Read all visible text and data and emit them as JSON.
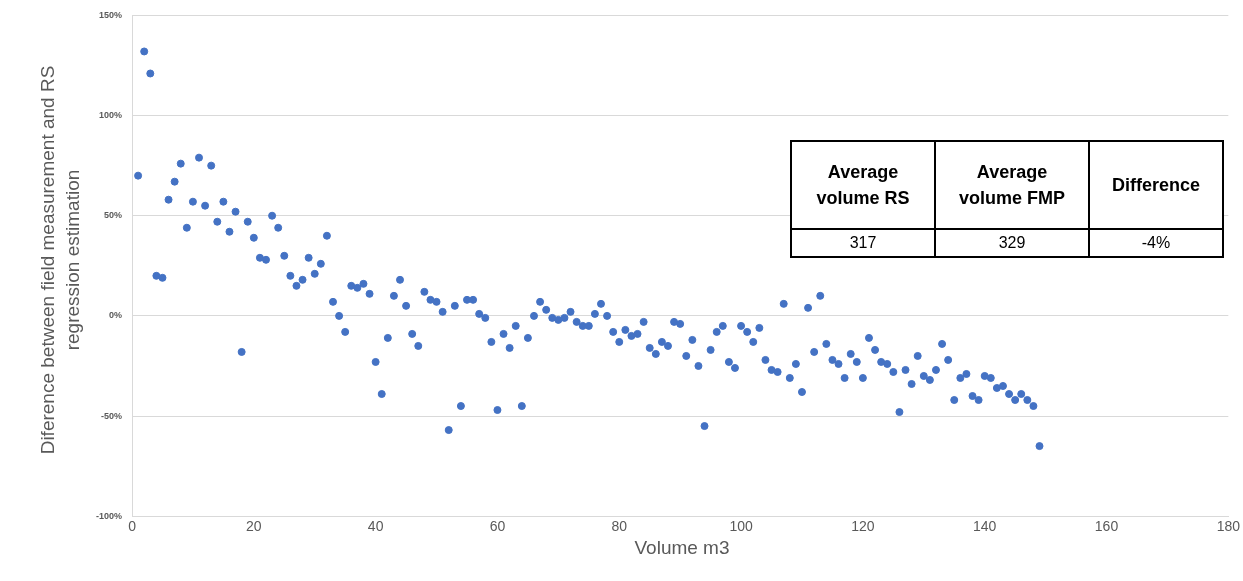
{
  "chart_data": {
    "type": "scatter",
    "xlabel": "Volume m3",
    "ylabel": "Diference between field measurement and RS regression estimation",
    "x": [
      1,
      2,
      3,
      4,
      5,
      6,
      7,
      8,
      9,
      10,
      11,
      12,
      13,
      14,
      15,
      16,
      17,
      18,
      19,
      20,
      21,
      22,
      23,
      24,
      25,
      26,
      27,
      28,
      29,
      30,
      31,
      32,
      33,
      34,
      35,
      36,
      37,
      38,
      39,
      40,
      41,
      42,
      43,
      44,
      45,
      46,
      47,
      48,
      49,
      50,
      51,
      52,
      53,
      54,
      55,
      56,
      57,
      58,
      59,
      60,
      61,
      62,
      63,
      64,
      65,
      66,
      67,
      68,
      69,
      70,
      71,
      72,
      73,
      74,
      75,
      76,
      77,
      78,
      79,
      80,
      81,
      82,
      83,
      84,
      85,
      86,
      87,
      88,
      89,
      90,
      91,
      92,
      93,
      94,
      95,
      96,
      97,
      98,
      99,
      100,
      101,
      102,
      103,
      104,
      105,
      106,
      107,
      108,
      109,
      110,
      111,
      112,
      113,
      114,
      115,
      116,
      117,
      118,
      119,
      120,
      121,
      122,
      123,
      124,
      125,
      126,
      127,
      128,
      129,
      130,
      131,
      132,
      133,
      134,
      135,
      136,
      137,
      138,
      139,
      140,
      141,
      142,
      143,
      144,
      145,
      146,
      147,
      148,
      149
    ],
    "series": [
      {
        "color": "#4472c4",
        "values": [
          70,
          132,
          121,
          20,
          19,
          58,
          67,
          76,
          44,
          57,
          79,
          55,
          75,
          47,
          57,
          42,
          52,
          -18,
          47,
          39,
          29,
          28,
          50,
          44,
          30,
          20,
          15,
          18,
          29,
          21,
          26,
          40,
          7,
          0,
          -8,
          15,
          14,
          16,
          11,
          -23,
          -39,
          -11,
          10,
          18,
          5,
          -9,
          -15,
          12,
          8,
          7,
          2,
          -57,
          5,
          -45,
          8,
          8,
          1,
          -1,
          -13,
          -47,
          -9,
          -16,
          -5,
          -45,
          -11,
          0,
          7,
          3,
          -1,
          -2,
          -1,
          2,
          -3,
          -5,
          -5,
          1,
          6,
          0,
          -8,
          -13,
          -7,
          -10,
          -9,
          -3,
          -16,
          -19,
          -13,
          -15,
          -3,
          -4,
          -20,
          -12,
          -25,
          -55,
          -17,
          -8,
          -5,
          -23,
          -26,
          -5,
          -8,
          -13,
          -6,
          -22,
          -27,
          -28,
          6,
          -31,
          -24,
          -38,
          4,
          -18,
          10,
          -14,
          -22,
          -24,
          -31,
          -19,
          -23,
          -31,
          -11,
          -17,
          -23,
          -24,
          -28,
          -48,
          -27,
          -34,
          -20,
          -30,
          -32,
          -27,
          -14,
          -22,
          -42,
          -31,
          -29,
          -40,
          -42,
          -30,
          -31,
          -36,
          -35,
          -39,
          -42,
          -39,
          -42,
          -45,
          -65
        ]
      }
    ],
    "xlim": [
      0,
      180
    ],
    "xticks": [
      0,
      20,
      40,
      60,
      80,
      100,
      120,
      140,
      160,
      180
    ],
    "ylim": [
      -100,
      150
    ],
    "yticks": [
      {
        "value": -100,
        "label": "-100%"
      },
      {
        "value": -50,
        "label": "-50%"
      },
      {
        "value": 0,
        "label": "0%"
      },
      {
        "value": 50,
        "label": "50%"
      },
      {
        "value": 100,
        "label": "100%"
      },
      {
        "value": 150,
        "label": "150%"
      }
    ],
    "grid": "y",
    "legend": false,
    "marker": "circle",
    "annotations": [
      "Average volume RS",
      "Average volume FMP",
      "Difference",
      "317",
      "329",
      "-4%"
    ]
  }
}
